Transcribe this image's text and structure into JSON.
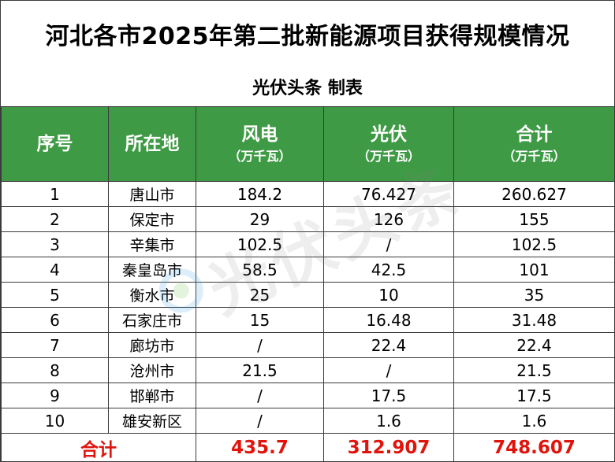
{
  "title": "河北各市2025年第二批新能源项目获得规模情况",
  "subtitle": "光伏头条 制表",
  "watermark_text": "光伏头条",
  "colors": {
    "header_bg": "#3f9a45",
    "header_text": "#ffffff",
    "total_text": "#e0140c"
  },
  "headers": {
    "index": "序号",
    "location": "所在地",
    "wind": "风电",
    "pv": "光伏",
    "total": "合计",
    "unit": "（万千瓦）"
  },
  "rows": [
    {
      "index": "1",
      "city": "唐山市",
      "wind": "184.2",
      "pv": "76.427",
      "total": "260.627"
    },
    {
      "index": "2",
      "city": "保定市",
      "wind": "29",
      "pv": "126",
      "total": "155"
    },
    {
      "index": "3",
      "city": "辛集市",
      "wind": "102.5",
      "pv": "/",
      "total": "102.5"
    },
    {
      "index": "4",
      "city": "秦皇岛市",
      "wind": "58.5",
      "pv": "42.5",
      "total": "101"
    },
    {
      "index": "5",
      "city": "衡水市",
      "wind": "25",
      "pv": "10",
      "total": "35"
    },
    {
      "index": "6",
      "city": "石家庄市",
      "wind": "15",
      "pv": "16.48",
      "total": "31.48"
    },
    {
      "index": "7",
      "city": "廊坊市",
      "wind": "/",
      "pv": "22.4",
      "total": "22.4"
    },
    {
      "index": "8",
      "city": "沧州市",
      "wind": "21.5",
      "pv": "/",
      "total": "21.5"
    },
    {
      "index": "9",
      "city": "邯郸市",
      "wind": "/",
      "pv": "17.5",
      "total": "17.5"
    },
    {
      "index": "10",
      "city": "雄安新区",
      "wind": "/",
      "pv": "1.6",
      "total": "1.6"
    }
  ],
  "totals": {
    "label": "合计",
    "wind": "435.7",
    "pv": "312.907",
    "total": "748.607"
  }
}
